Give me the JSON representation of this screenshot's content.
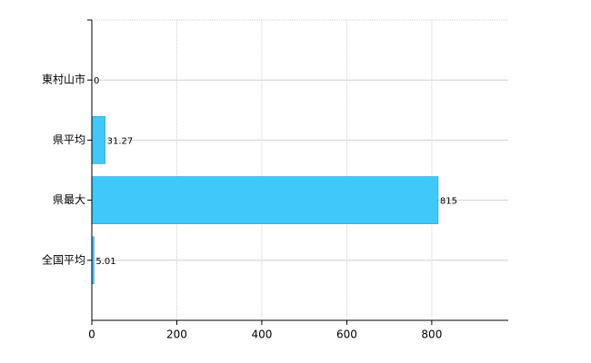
{
  "chart_data": {
    "type": "bar",
    "orientation": "horizontal",
    "categories": [
      "東村山市",
      "県平均",
      "県最大",
      "全国平均"
    ],
    "values": [
      0,
      31.27,
      815,
      5.01
    ],
    "color": "#40c8f8",
    "xlim": [
      0,
      980
    ],
    "xticks": [
      0,
      200,
      400,
      600,
      800
    ],
    "grid": true
  }
}
